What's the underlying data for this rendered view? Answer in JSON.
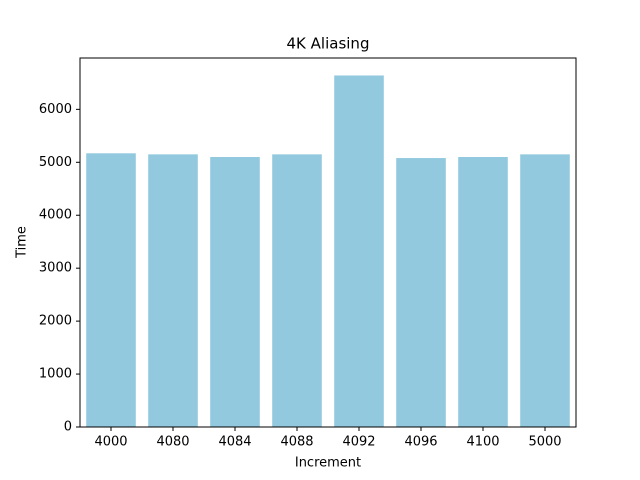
{
  "chart_data": {
    "type": "bar",
    "title": "4K Aliasing",
    "x_label": "Increment",
    "y_label": "Time",
    "categories": [
      "4000",
      "4080",
      "4084",
      "4088",
      "4092",
      "4096",
      "4100",
      "5000"
    ],
    "values": [
      5170,
      5150,
      5100,
      5150,
      6640,
      5080,
      5100,
      5150
    ],
    "color": "#92c9de",
    "ylim": [
      0,
      6970
    ],
    "yticks": [
      0,
      1000,
      2000,
      3000,
      4000,
      5000,
      6000
    ],
    "grid": false
  }
}
